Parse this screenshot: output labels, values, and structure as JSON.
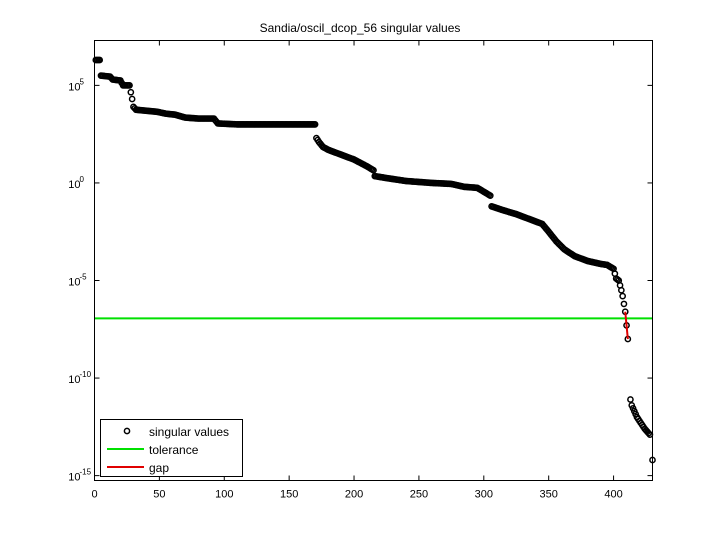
{
  "chart_data": {
    "type": "scatter",
    "title": "Sandia/oscil_dcop_56 singular values",
    "xlabel": "",
    "ylabel": "",
    "yscale": "log",
    "xlim": [
      0,
      430
    ],
    "ylim_log10": [
      -15.25,
      7.3
    ],
    "x_ticks": [
      0,
      50,
      100,
      150,
      200,
      250,
      300,
      350,
      400
    ],
    "y_ticks": [
      {
        "base": "10",
        "exp": "5",
        "log10": 5
      },
      {
        "base": "10",
        "exp": "0",
        "log10": 0
      },
      {
        "base": "10",
        "exp": "-5",
        "log10": -5
      },
      {
        "base": "10",
        "exp": "-10",
        "log10": -10
      },
      {
        "base": "10",
        "exp": "-15",
        "log10": -15
      }
    ],
    "grid": false,
    "legend": {
      "position": "lower left",
      "entries": [
        {
          "label": "singular values",
          "marker": "circle",
          "color": "#000000"
        },
        {
          "label": "tolerance",
          "line": true,
          "color": "#00e000"
        },
        {
          "label": "gap",
          "line": true,
          "color": "#e00000"
        }
      ]
    },
    "series": [
      {
        "name": "singular values",
        "description": "log10 of singular values vs index (estimated anchor points; interpolated between)",
        "points_log10": [
          [
            1,
            6.3
          ],
          [
            4,
            6.3
          ],
          [
            5,
            5.5
          ],
          [
            12,
            5.45
          ],
          [
            14,
            5.3
          ],
          [
            20,
            5.25
          ],
          [
            22,
            5.0
          ],
          [
            27,
            5.0
          ],
          [
            29,
            4.3
          ],
          [
            30,
            3.9
          ],
          [
            32,
            3.75
          ],
          [
            40,
            3.7
          ],
          [
            48,
            3.65
          ],
          [
            55,
            3.55
          ],
          [
            62,
            3.5
          ],
          [
            70,
            3.35
          ],
          [
            80,
            3.3
          ],
          [
            92,
            3.3
          ],
          [
            95,
            3.05
          ],
          [
            110,
            3.0
          ],
          [
            130,
            3.0
          ],
          [
            150,
            3.0
          ],
          [
            170,
            3.0
          ],
          [
            171,
            2.3
          ],
          [
            173,
            2.1
          ],
          [
            176,
            1.85
          ],
          [
            180,
            1.7
          ],
          [
            190,
            1.45
          ],
          [
            200,
            1.2
          ],
          [
            210,
            0.85
          ],
          [
            215,
            0.65
          ],
          [
            216,
            0.35
          ],
          [
            225,
            0.25
          ],
          [
            240,
            0.1
          ],
          [
            260,
            0.0
          ],
          [
            275,
            -0.05
          ],
          [
            285,
            -0.2
          ],
          [
            295,
            -0.25
          ],
          [
            300,
            -0.45
          ],
          [
            305,
            -0.65
          ],
          [
            306,
            -1.2
          ],
          [
            315,
            -1.4
          ],
          [
            325,
            -1.6
          ],
          [
            335,
            -1.85
          ],
          [
            345,
            -2.1
          ],
          [
            350,
            -2.5
          ],
          [
            356,
            -3.0
          ],
          [
            362,
            -3.4
          ],
          [
            370,
            -3.75
          ],
          [
            380,
            -4.0
          ],
          [
            390,
            -4.15
          ],
          [
            395,
            -4.2
          ],
          [
            400,
            -4.4
          ],
          [
            402,
            -4.9
          ],
          [
            404,
            -5.0
          ],
          [
            406,
            -5.5
          ],
          [
            407,
            -5.8
          ],
          [
            409,
            -6.6
          ],
          [
            411,
            -8.0
          ],
          [
            413,
            -11.1
          ],
          [
            414,
            -11.4
          ],
          [
            416,
            -11.7
          ],
          [
            418,
            -12.0
          ],
          [
            420,
            -12.2
          ],
          [
            422,
            -12.4
          ],
          [
            424,
            -12.6
          ],
          [
            426,
            -12.75
          ],
          [
            428,
            -12.9
          ],
          [
            430,
            -14.2
          ]
        ]
      },
      {
        "name": "tolerance",
        "type": "hline",
        "log10": -6.94
      },
      {
        "name": "gap",
        "type": "segment",
        "points_log10": [
          [
            409,
            -6.6
          ],
          [
            411,
            -8.0
          ]
        ]
      }
    ]
  }
}
